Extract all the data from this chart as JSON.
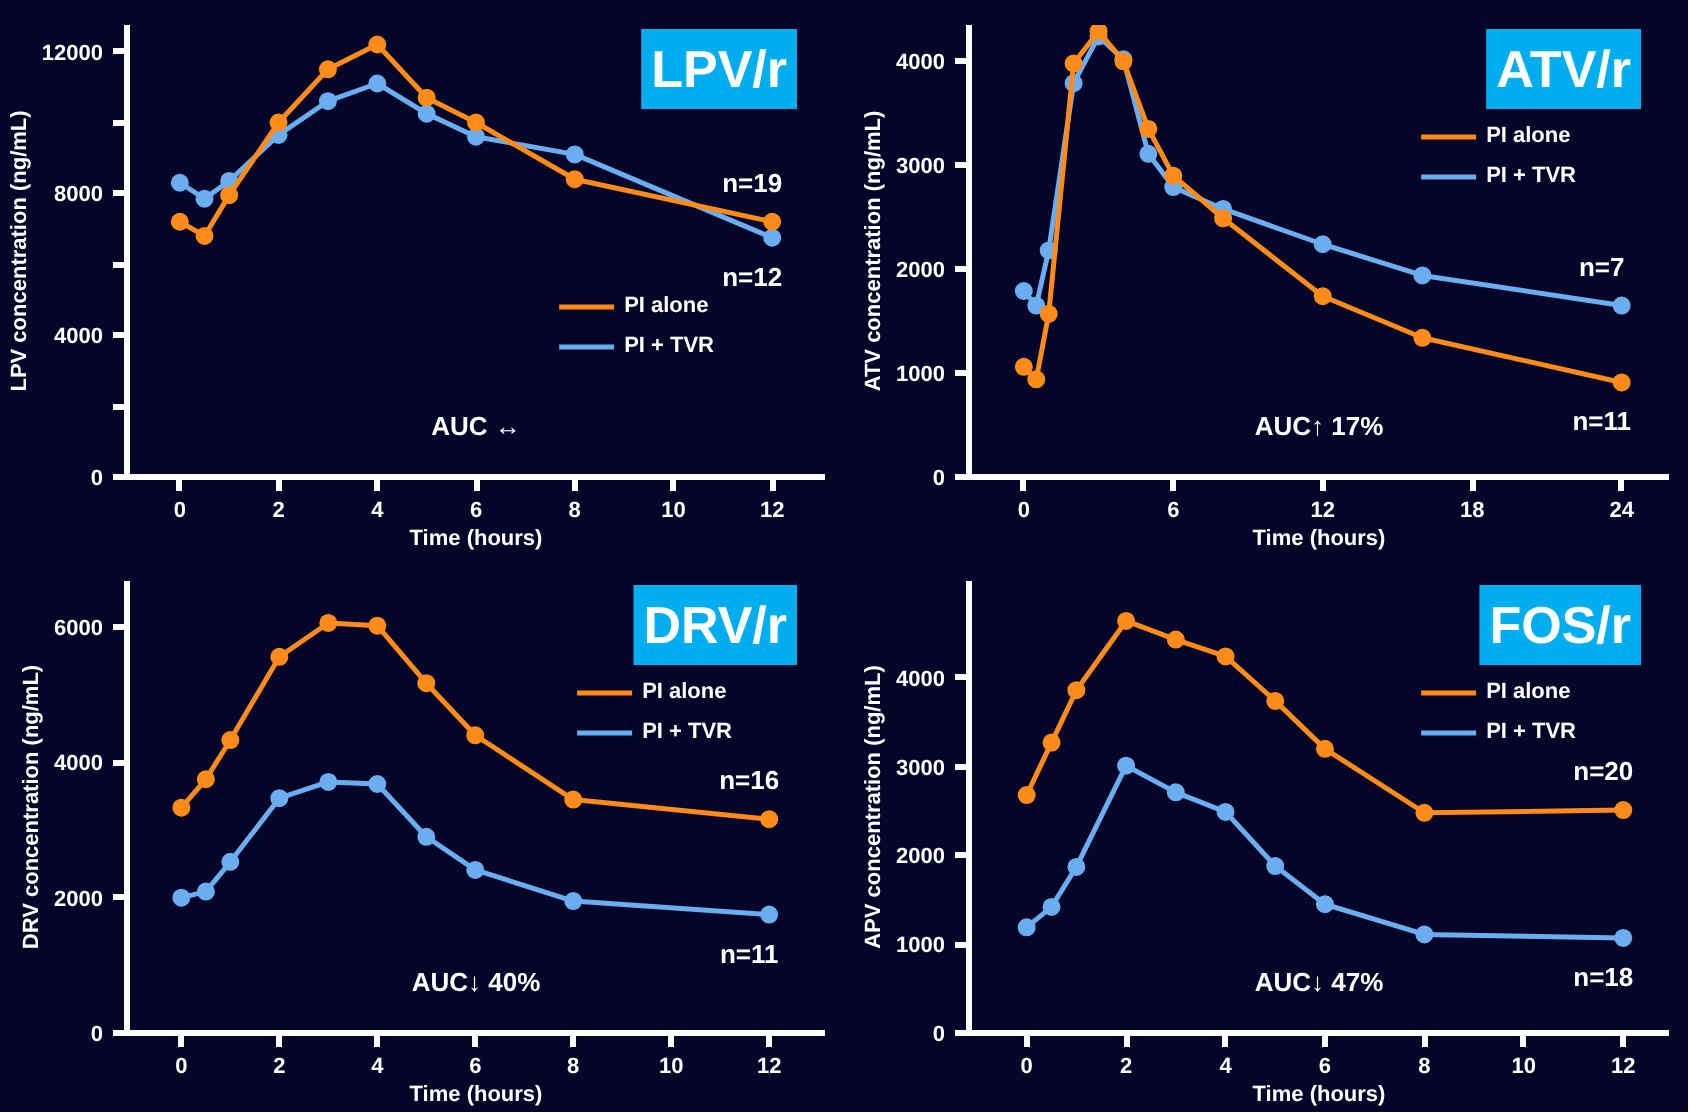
{
  "chart_data": [
    {
      "type": "line",
      "title": "LPV/r",
      "xlabel": "Time (hours)",
      "ylabel": "LPV concentration (ng/mL)",
      "x": [
        0,
        0.5,
        1,
        2,
        3,
        4,
        5,
        6,
        8,
        12
      ],
      "marker": "circle",
      "legend": "bottom right",
      "series": [
        {
          "name": "PI alone",
          "color": "#ff8c1a",
          "values": [
            7200,
            6800,
            7950,
            10000,
            11500,
            12200,
            10700,
            10000,
            8400,
            7200
          ]
        },
        {
          "name": "PI + TVR",
          "color": "#6aaef0",
          "values": [
            8300,
            7850,
            8350,
            9650,
            10600,
            11100,
            10250,
            9600,
            9100,
            6750
          ]
        }
      ],
      "xlim": [
        -1.07,
        13.07
      ],
      "ylim": [
        0,
        12750
      ],
      "xticks": [
        0,
        2,
        4,
        6,
        8,
        10,
        12
      ],
      "yticks": [
        0,
        {
          "value": 2000,
          "label": null
        },
        4000,
        {
          "value": 6000,
          "label": null
        },
        8000,
        {
          "value": 10000,
          "label": null
        },
        12000
      ],
      "annotations": [
        "n=19",
        "n=12",
        "AUC ↔"
      ]
    },
    {
      "type": "line",
      "title": "ATV/r",
      "xlabel": "Time (hours)",
      "ylabel": "ATV concentration (ng/mL)",
      "x": [
        0,
        0.5,
        1,
        2,
        3,
        4,
        5,
        6,
        8,
        12,
        16,
        24
      ],
      "marker": "circle",
      "legend": "top right",
      "series": [
        {
          "name": "PI alone",
          "color": "#ff8c1a",
          "values": [
            1060,
            940,
            1570,
            3980,
            4290,
            4000,
            3350,
            2900,
            2490,
            1740,
            1340,
            910
          ]
        },
        {
          "name": "PI + TVR",
          "color": "#6aaef0",
          "values": [
            1790,
            1650,
            2180,
            3790,
            4240,
            4020,
            3110,
            2790,
            2580,
            2240,
            1940,
            1650
          ]
        }
      ],
      "xlim": [
        -2.2,
        25.9
      ],
      "ylim": [
        0,
        4350
      ],
      "xticks": [
        0,
        6,
        12,
        18,
        24
      ],
      "yticks": [
        0,
        1000,
        2000,
        3000,
        4000
      ],
      "annotations": [
        "n=7",
        "n=11",
        "AUC↑ 17%"
      ]
    },
    {
      "type": "line",
      "title": "DRV/r",
      "xlabel": "Time (hours)",
      "ylabel": "DRV concentration (ng/mL)",
      "x": [
        0,
        0.5,
        1,
        2,
        3,
        4,
        5,
        6,
        8,
        12
      ],
      "marker": "circle",
      "legend": "top right",
      "series": [
        {
          "name": "PI alone",
          "color": "#ff8c1a",
          "values": [
            3330,
            3750,
            4330,
            5560,
            6060,
            6020,
            5170,
            4400,
            3450,
            3160
          ]
        },
        {
          "name": "PI + TVR",
          "color": "#6aaef0",
          "values": [
            2000,
            2090,
            2530,
            3470,
            3710,
            3680,
            2900,
            2410,
            1950,
            1750
          ]
        }
      ],
      "xlim": [
        -1.11,
        13.14
      ],
      "ylim": [
        0,
        6680
      ],
      "xticks": [
        0,
        2,
        4,
        6,
        8,
        10,
        12
      ],
      "yticks": [
        0,
        2000,
        4000,
        6000
      ],
      "annotations": [
        "n=16",
        "n=11",
        "AUC↓ 40%"
      ]
    },
    {
      "type": "line",
      "title": "FOS/r",
      "xlabel": "Time (hours)",
      "ylabel": "APV concentration (ng/mL)",
      "x": [
        0,
        0.5,
        1,
        2,
        3,
        4,
        5,
        6,
        8,
        12
      ],
      "marker": "circle",
      "legend": "top right",
      "series": [
        {
          "name": "PI alone",
          "color": "#ff8c1a",
          "values": [
            2680,
            3270,
            3860,
            4640,
            4430,
            4240,
            3740,
            3200,
            2480,
            2510
          ]
        },
        {
          "name": "PI + TVR",
          "color": "#6aaef0",
          "values": [
            1190,
            1420,
            1870,
            3010,
            2710,
            2490,
            1880,
            1450,
            1110,
            1070
          ]
        }
      ],
      "xlim": [
        -1.16,
        12.92
      ],
      "ylim": [
        0,
        5090
      ],
      "xticks": [
        0,
        2,
        4,
        6,
        8,
        10,
        12
      ],
      "yticks": [
        0,
        1000,
        2000,
        3000,
        4000
      ],
      "annotations": [
        "n=20",
        "n=18",
        "AUC↓ 47%"
      ]
    }
  ]
}
